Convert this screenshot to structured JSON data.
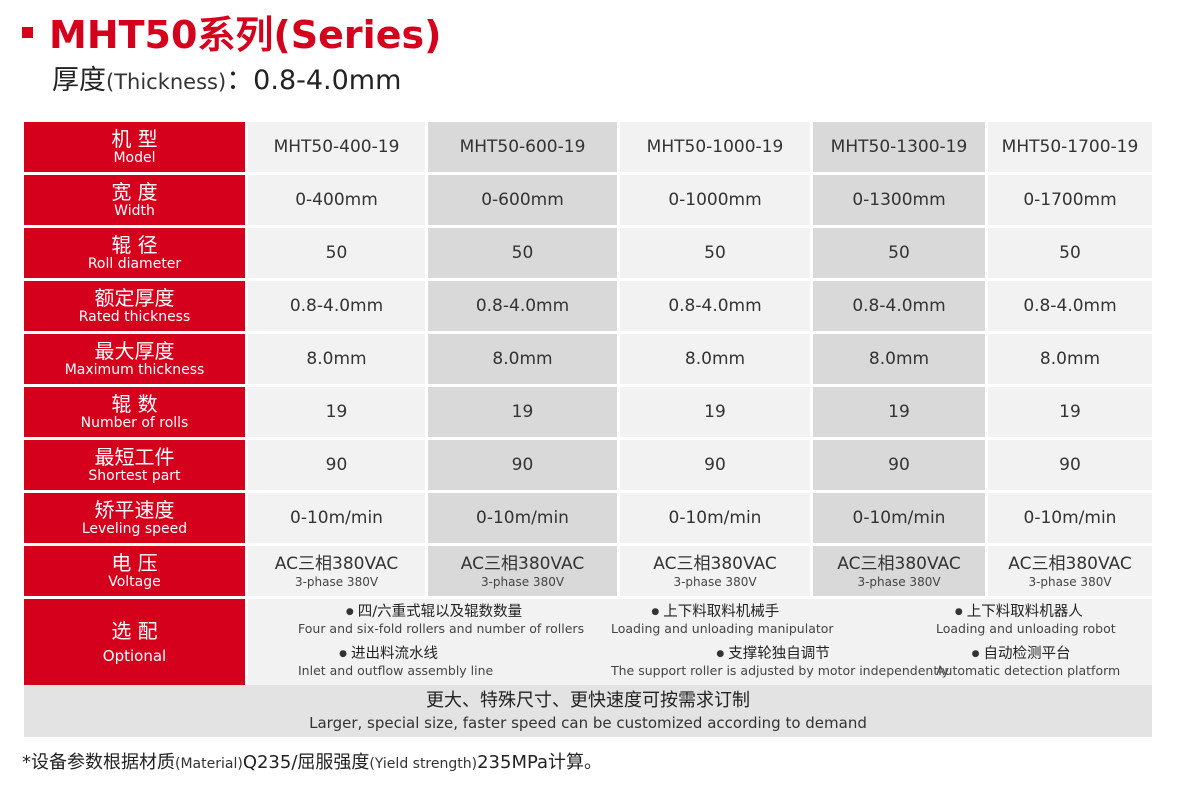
{
  "header": {
    "title": "MHT50系列(Series)",
    "thickness_cn": "厚度",
    "thickness_en": "(Thickness)",
    "thickness_value": "：0.8-4.0mm"
  },
  "rows": [
    {
      "label_cn": "机 型",
      "label_en": "Model",
      "values": [
        "MHT50-400-19",
        "MHT50-600-19",
        "MHT50-1000-19",
        "MHT50-1300-19",
        "MHT50-1700-19"
      ]
    },
    {
      "label_cn": "宽 度",
      "label_en": "Width",
      "values": [
        "0-400mm",
        "0-600mm",
        "0-1000mm",
        "0-1300mm",
        "0-1700mm"
      ]
    },
    {
      "label_cn": "辊 径",
      "label_en": "Roll diameter",
      "values": [
        "50",
        "50",
        "50",
        "50",
        "50"
      ]
    },
    {
      "label_cn": "额定厚度",
      "label_en": "Rated thickness",
      "values": [
        "0.8-4.0mm",
        "0.8-4.0mm",
        "0.8-4.0mm",
        "0.8-4.0mm",
        "0.8-4.0mm"
      ]
    },
    {
      "label_cn": "最大厚度",
      "label_en": "Maximum thickness",
      "values": [
        "8.0mm",
        "8.0mm",
        "8.0mm",
        "8.0mm",
        "8.0mm"
      ]
    },
    {
      "label_cn": "辊 数",
      "label_en": "Number of rolls",
      "values": [
        "19",
        "19",
        "19",
        "19",
        "19"
      ]
    },
    {
      "label_cn": "最短工件",
      "label_en": "Shortest part",
      "values": [
        "90",
        "90",
        "90",
        "90",
        "90"
      ]
    },
    {
      "label_cn": "矫平速度",
      "label_en": "Leveling speed",
      "values": [
        "0-10m/min",
        "0-10m/min",
        "0-10m/min",
        "0-10m/min",
        "0-10m/min"
      ]
    }
  ],
  "voltage": {
    "label_cn": "电 压",
    "label_en": "Voltage",
    "values": [
      {
        "main": "AC三相380VAC",
        "sub": "3-phase 380V"
      },
      {
        "main": "AC三相380VAC",
        "sub": "3-phase 380V"
      },
      {
        "main": "AC三相380VAC",
        "sub": "3-phase 380V"
      },
      {
        "main": "AC三相380VAC",
        "sub": "3-phase 380V"
      },
      {
        "main": "AC三相380VAC",
        "sub": "3-phase 380V"
      }
    ]
  },
  "optional": {
    "label_cn": "选 配",
    "label_en": "Optional",
    "items": [
      {
        "cn": "四/六重式辊以及辊数数量",
        "en": "Four and six-fold rollers and number of rollers"
      },
      {
        "cn": "上下料取料机械手",
        "en": "Loading and unloading manipulator"
      },
      {
        "cn": "上下料取料机器人",
        "en": "Loading and unloading robot"
      },
      {
        "cn": "进出料流水线",
        "en": "Inlet and outflow assembly line"
      },
      {
        "cn": "支撑轮独自调节",
        "en": "The support roller is adjusted by motor independently"
      },
      {
        "cn": "自动检测平台",
        "en": "Automatic detection platform"
      }
    ]
  },
  "footer": {
    "cn": "更大、特殊尺寸、更快速度可按需求订制",
    "en": "Larger, special size, faster speed can be customized according to demand"
  },
  "note": {
    "prefix": "*设备参数根据材质",
    "material_en": "(Material)",
    "material_val": "Q235/屈服强度",
    "yield_en": "(Yield strength)",
    "suffix": "235MPa计算。"
  },
  "colors": {
    "accent": "#d5001c",
    "col_light": "#f2f2f2",
    "col_dark": "#d9d9d9"
  }
}
